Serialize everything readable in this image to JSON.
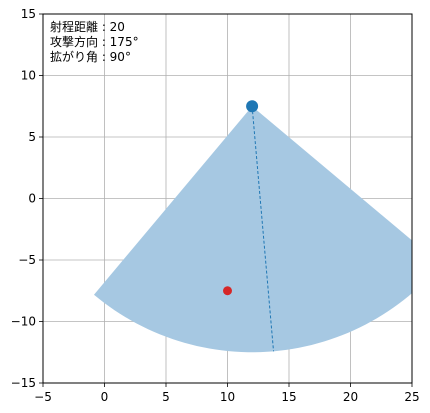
{
  "chart_data": {
    "type": "scatter",
    "title": "",
    "xlabel": "",
    "ylabel": "",
    "xlim": [
      -5,
      25
    ],
    "ylim": [
      -15,
      15
    ],
    "grid": true,
    "x_ticks": [
      -5,
      0,
      5,
      10,
      15,
      20,
      25
    ],
    "y_ticks": [
      -15,
      -10,
      -5,
      0,
      5,
      10,
      15
    ],
    "x_tick_labels": [
      "−5",
      "0",
      "5",
      "10",
      "15",
      "20",
      "25"
    ],
    "y_tick_labels": [
      "−15",
      "−10",
      "−5",
      "0",
      "5",
      "10",
      "15"
    ],
    "info_lines": [
      "射程距離 : 20",
      "攻撃方向 : 175°",
      "拡がり角 : 90°"
    ],
    "range": 20,
    "direction_deg": 175,
    "spread_deg": 90,
    "origin": {
      "x": 12,
      "y": 7.5
    },
    "target": {
      "x": 10,
      "y": -7.5
    },
    "colors": {
      "sector": "#a6c8e2",
      "origin": "#1f77b4",
      "target": "#d62728",
      "direction_line": "#1f77b4",
      "grid": "#b0b0b0",
      "axes": "#000000"
    }
  }
}
